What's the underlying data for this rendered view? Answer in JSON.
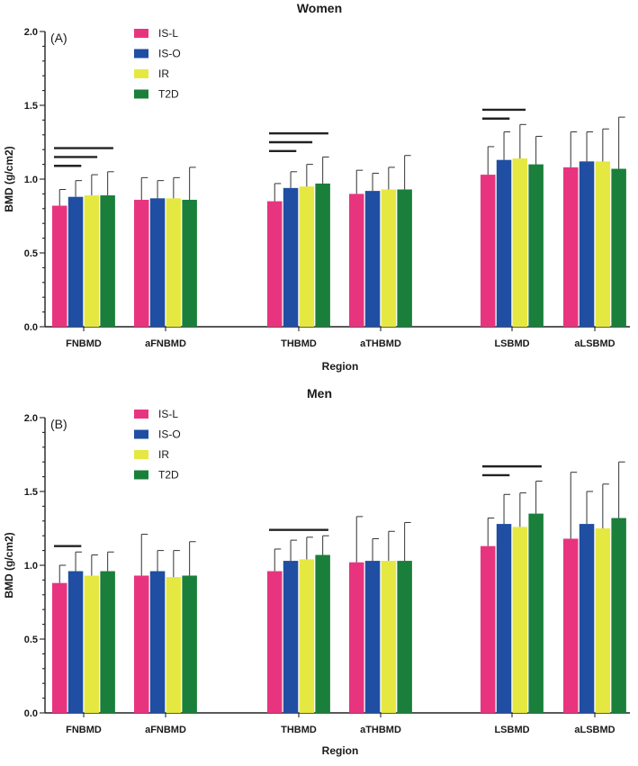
{
  "chart_data": [
    {
      "type": "bar",
      "panel_label": "(A)",
      "title": "Women",
      "xlabel": "Region",
      "ylabel": "BMD (g/cm2)",
      "ylim": [
        0,
        2.0
      ],
      "yticks": [
        "0.0",
        "0.5",
        "1.0",
        "1.5",
        "2.0"
      ],
      "legend_position": "top-left",
      "categories": [
        "FNBMD",
        "aFNBMD",
        "THBMD",
        "aTHBMD",
        "LSBMD",
        "aLSBMD"
      ],
      "series": [
        {
          "name": "IS-L",
          "color": "#e8347f",
          "values": [
            0.82,
            0.86,
            0.85,
            0.9,
            1.03,
            1.08
          ],
          "errors": [
            0.11,
            0.15,
            0.12,
            0.16,
            0.19,
            0.24
          ]
        },
        {
          "name": "IS-O",
          "color": "#1f4ea3",
          "values": [
            0.88,
            0.87,
            0.94,
            0.92,
            1.13,
            1.12
          ],
          "errors": [
            0.11,
            0.12,
            0.11,
            0.12,
            0.19,
            0.2
          ]
        },
        {
          "name": "IR",
          "color": "#e6e842",
          "values": [
            0.89,
            0.87,
            0.95,
            0.93,
            1.14,
            1.12
          ],
          "errors": [
            0.14,
            0.14,
            0.15,
            0.15,
            0.23,
            0.22
          ]
        },
        {
          "name": "T2D",
          "color": "#1a7f3a",
          "values": [
            0.89,
            0.86,
            0.97,
            0.93,
            1.1,
            1.07
          ],
          "errors": [
            0.16,
            0.22,
            0.18,
            0.23,
            0.19,
            0.35
          ]
        }
      ],
      "significance_lines": [
        {
          "category": "FNBMD",
          "from": 0,
          "to": 1
        },
        {
          "category": "FNBMD",
          "from": 0,
          "to": 2
        },
        {
          "category": "FNBMD",
          "from": 0,
          "to": 3
        },
        {
          "category": "THBMD",
          "from": 0,
          "to": 1
        },
        {
          "category": "THBMD",
          "from": 0,
          "to": 2
        },
        {
          "category": "THBMD",
          "from": 0,
          "to": 3
        },
        {
          "category": "LSBMD",
          "from": 0,
          "to": 1
        },
        {
          "category": "LSBMD",
          "from": 0,
          "to": 2
        }
      ]
    },
    {
      "type": "bar",
      "panel_label": "(B)",
      "title": "Men",
      "xlabel": "Region",
      "ylabel": "BMD (g/cm2)",
      "ylim": [
        0,
        2.0
      ],
      "yticks": [
        "0.0",
        "0.5",
        "1.0",
        "1.5",
        "2.0"
      ],
      "legend_position": "top-left",
      "categories": [
        "FNBMD",
        "aFNBMD",
        "THBMD",
        "aTHBMD",
        "LSBMD",
        "aLSBMD"
      ],
      "series": [
        {
          "name": "IS-L",
          "color": "#e8347f",
          "values": [
            0.88,
            0.93,
            0.96,
            1.02,
            1.13,
            1.18
          ],
          "errors": [
            0.12,
            0.28,
            0.15,
            0.31,
            0.19,
            0.45
          ]
        },
        {
          "name": "IS-O",
          "color": "#1f4ea3",
          "values": [
            0.96,
            0.96,
            1.03,
            1.03,
            1.28,
            1.28
          ],
          "errors": [
            0.13,
            0.14,
            0.14,
            0.15,
            0.2,
            0.22
          ]
        },
        {
          "name": "IR",
          "color": "#e6e842",
          "values": [
            0.93,
            0.92,
            1.04,
            1.03,
            1.26,
            1.25
          ],
          "errors": [
            0.14,
            0.18,
            0.15,
            0.2,
            0.23,
            0.3
          ]
        },
        {
          "name": "T2D",
          "color": "#1a7f3a",
          "values": [
            0.96,
            0.93,
            1.07,
            1.03,
            1.35,
            1.32
          ],
          "errors": [
            0.13,
            0.23,
            0.13,
            0.26,
            0.22,
            0.38
          ]
        }
      ],
      "significance_lines": [
        {
          "category": "FNBMD",
          "from": 0,
          "to": 1
        },
        {
          "category": "THBMD",
          "from": 0,
          "to": 3
        },
        {
          "category": "LSBMD",
          "from": 0,
          "to": 1
        },
        {
          "category": "LSBMD",
          "from": 0,
          "to": 3
        }
      ]
    }
  ]
}
